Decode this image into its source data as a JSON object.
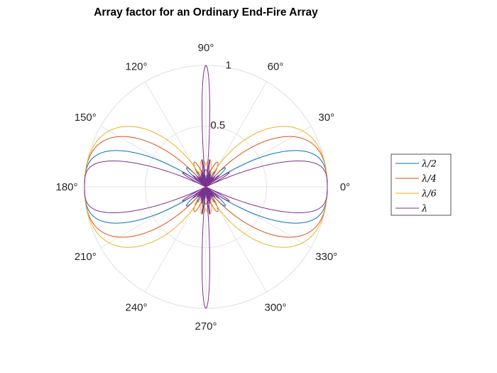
{
  "chart_data": {
    "type": "polar-line",
    "title": "Array factor for an Ordinary End-Fire Array",
    "r_range": [
      0,
      1
    ],
    "radial_ticks": [
      0.5,
      1
    ],
    "radial_tick_labels": [
      "0.5",
      "1"
    ],
    "angle_ticks_deg": [
      0,
      30,
      60,
      90,
      120,
      150,
      180,
      210,
      240,
      270,
      300,
      330
    ],
    "angle_tick_labels": [
      "0°",
      "30°",
      "60°",
      "90°",
      "120°",
      "150°",
      "180°",
      "210°",
      "240°",
      "270°",
      "300°",
      "330°"
    ],
    "grid": true,
    "legend_placement": "right",
    "series": [
      {
        "name": "λ/2",
        "spacing_wavelengths": 0.5,
        "color": "#0072BD"
      },
      {
        "name": "λ/4",
        "spacing_wavelengths": 0.25,
        "color": "#D95319"
      },
      {
        "name": "λ/6",
        "spacing_wavelengths": 0.1666667,
        "color": "#EDB120"
      },
      {
        "name": "λ",
        "spacing_wavelengths": 1.0,
        "color": "#7E2F8E"
      }
    ]
  }
}
